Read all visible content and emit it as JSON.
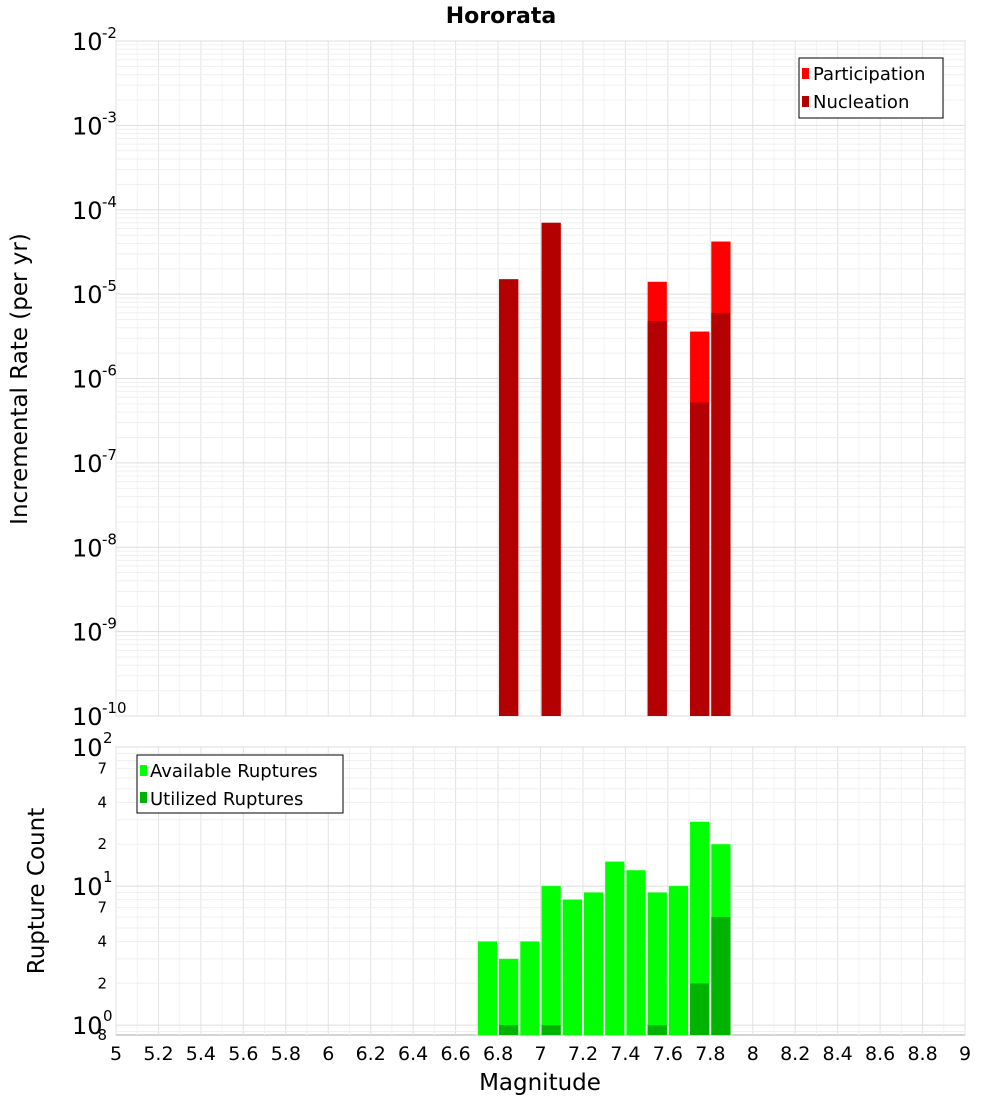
{
  "chart_data": [
    {
      "type": "bar",
      "title": "Hororata",
      "ylabel": "Incremental Rate (per yr)",
      "xlabel": "",
      "y_scale": "log",
      "ylim": [
        1e-10,
        0.01
      ],
      "xlim": [
        5,
        9
      ],
      "y_major_ticks": [
        {
          "base": "10",
          "exp": "-2",
          "value": 0.01
        },
        {
          "base": "10",
          "exp": "-3",
          "value": 0.001
        },
        {
          "base": "10",
          "exp": "-4",
          "value": 0.0001
        },
        {
          "base": "10",
          "exp": "-5",
          "value": 1e-05
        },
        {
          "base": "10",
          "exp": "-6",
          "value": 1e-06
        },
        {
          "base": "10",
          "exp": "-7",
          "value": 1e-07
        },
        {
          "base": "10",
          "exp": "-8",
          "value": 1e-08
        },
        {
          "base": "10",
          "exp": "-9",
          "value": 1e-09
        },
        {
          "base": "10",
          "exp": "-10",
          "value": 1e-10
        }
      ],
      "legend": [
        {
          "label": "Participation",
          "color": "#ff0000"
        },
        {
          "label": "Nucleation",
          "color": "#b30000"
        }
      ],
      "bin_width": 0.1,
      "series": [
        {
          "name": "Participation",
          "color": "#ff0000",
          "x": [
            6.85,
            7.05,
            7.55,
            7.75,
            7.85
          ],
          "values": [
            1.5e-05,
            7e-05,
            1.4e-05,
            3.6e-06,
            4.2e-05
          ]
        },
        {
          "name": "Nucleation",
          "color": "#b30000",
          "x": [
            6.85,
            7.05,
            7.55,
            7.75,
            7.85
          ],
          "values": [
            1.5e-05,
            7e-05,
            4.8e-06,
            5.2e-07,
            6e-06
          ]
        }
      ]
    },
    {
      "type": "bar",
      "title": "",
      "ylabel": "Rupture Count",
      "xlabel": "Magnitude",
      "y_scale": "log",
      "ylim": [
        0.85,
        100
      ],
      "xlim": [
        5,
        9
      ],
      "x_ticks": [
        "5",
        "5.2",
        "5.4",
        "5.6",
        "5.8",
        "6",
        "6.2",
        "6.4",
        "6.6",
        "6.8",
        "7",
        "7.2",
        "7.4",
        "7.6",
        "7.8",
        "8",
        "8.2",
        "8.4",
        "8.6",
        "8.8",
        "9"
      ],
      "y_major_ticks": [
        {
          "base": "10",
          "exp": "2",
          "value": 100
        },
        {
          "base": "10",
          "exp": "1",
          "value": 10
        },
        {
          "base": "10",
          "exp": "0",
          "value": 1
        }
      ],
      "y_minor_ticks": [
        {
          "label": "7",
          "value": 70
        },
        {
          "label": "4",
          "value": 40
        },
        {
          "label": "2",
          "value": 20
        },
        {
          "label": "7",
          "value": 7
        },
        {
          "label": "4",
          "value": 4
        },
        {
          "label": "2",
          "value": 2
        },
        {
          "label": "8",
          "value": 0.85
        }
      ],
      "legend": [
        {
          "label": "Available Ruptures",
          "color": "#00ff00"
        },
        {
          "label": "Utilized Ruptures",
          "color": "#00b300"
        }
      ],
      "bin_width": 0.1,
      "series": [
        {
          "name": "Available Ruptures",
          "color": "#00ff00",
          "x": [
            6.75,
            6.85,
            6.95,
            7.05,
            7.15,
            7.25,
            7.35,
            7.45,
            7.55,
            7.65,
            7.75,
            7.85
          ],
          "values": [
            4,
            3,
            4,
            10,
            8,
            9,
            15,
            13,
            9,
            10,
            29,
            20
          ]
        },
        {
          "name": "Utilized Ruptures",
          "color": "#00b300",
          "x": [
            6.85,
            7.05,
            7.55,
            7.75,
            7.85
          ],
          "values": [
            1,
            1,
            1,
            2,
            6
          ]
        }
      ]
    }
  ]
}
